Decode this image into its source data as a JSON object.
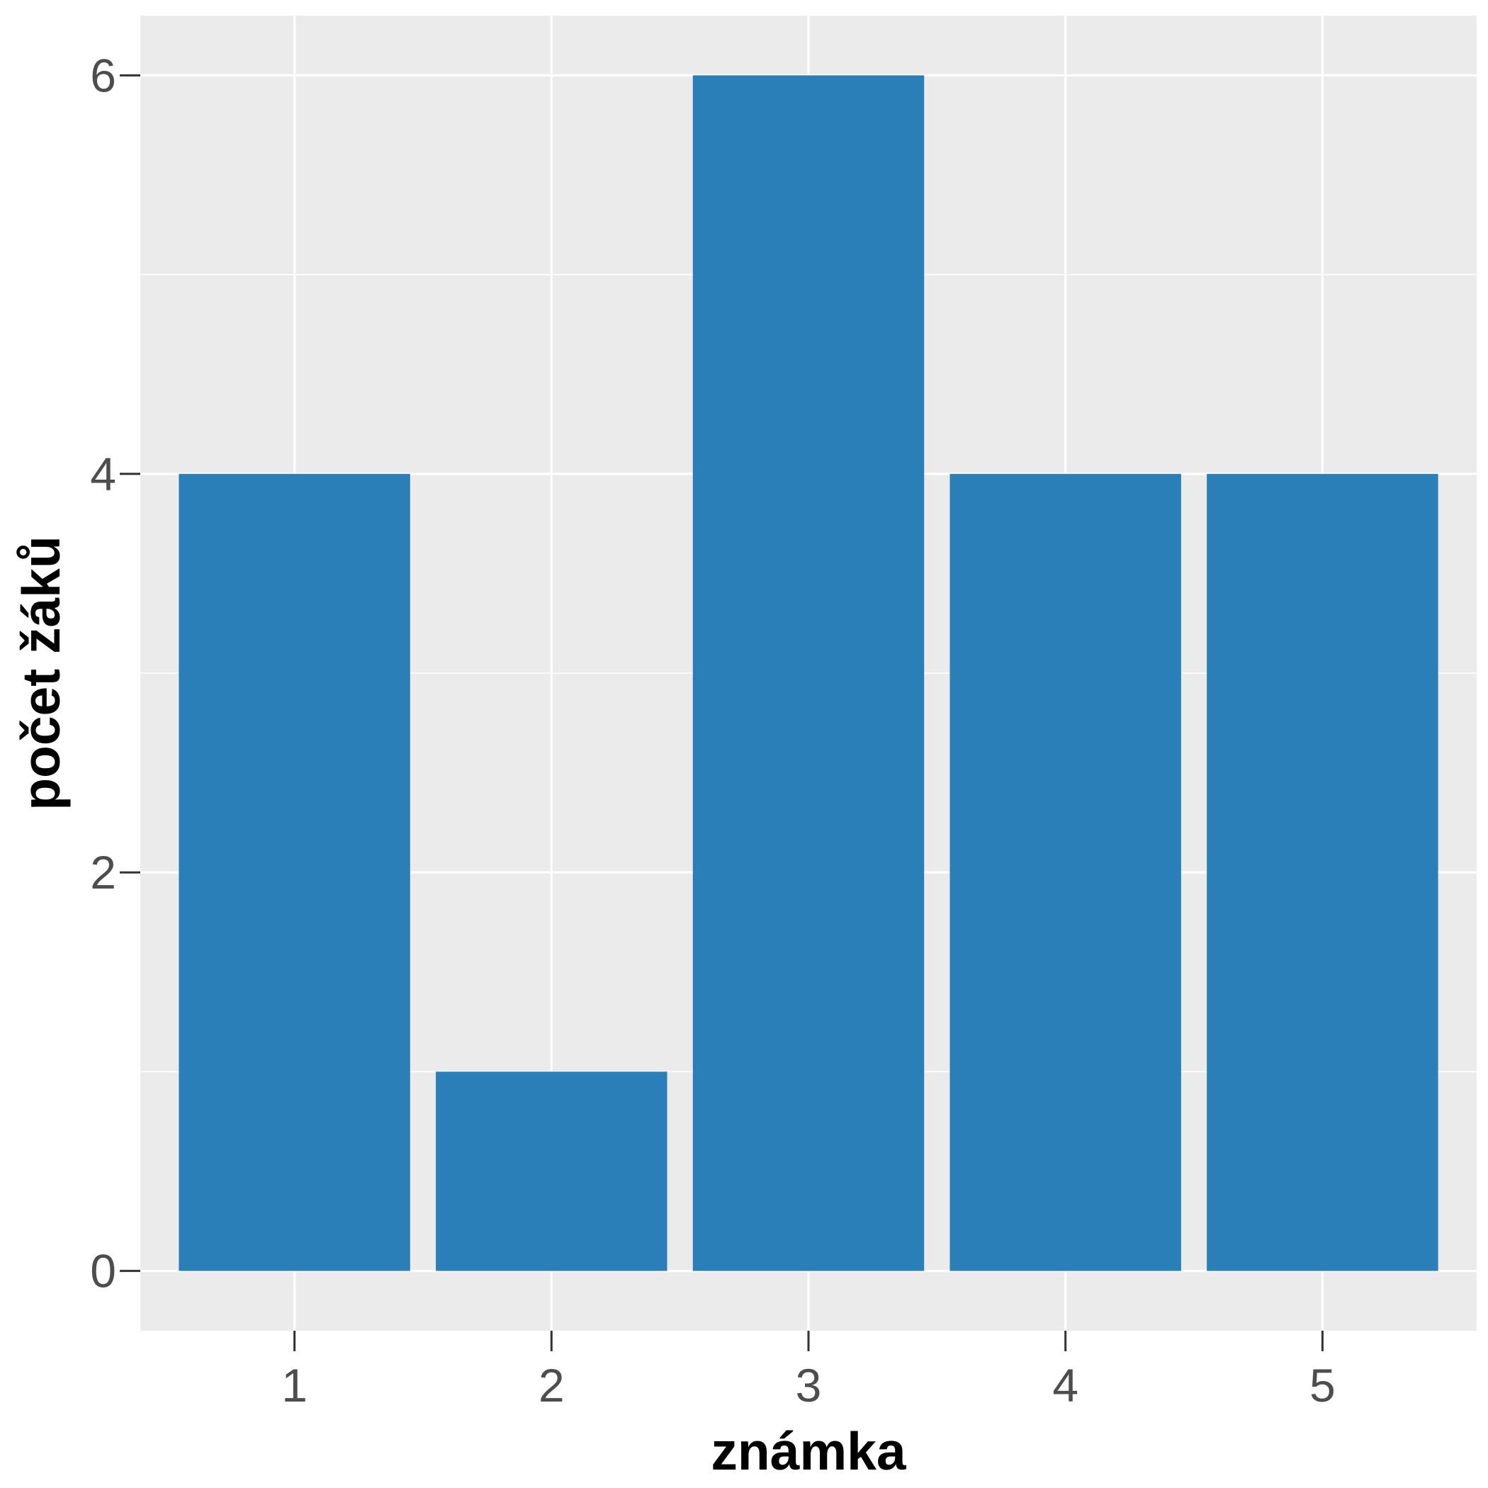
{
  "chart_data": {
    "type": "bar",
    "categories": [
      "1",
      "2",
      "3",
      "4",
      "5"
    ],
    "values": [
      4,
      1,
      6,
      4,
      4
    ],
    "title": "",
    "xlabel": "známka",
    "ylabel": "počet žáků",
    "ylim": [
      -0.3,
      6.3
    ],
    "yticks": [
      0,
      2,
      4,
      6
    ],
    "grid": true,
    "bar_color": "#2b7fb8",
    "panel_color": "#ebebeb",
    "grid_color": "#ffffff"
  }
}
